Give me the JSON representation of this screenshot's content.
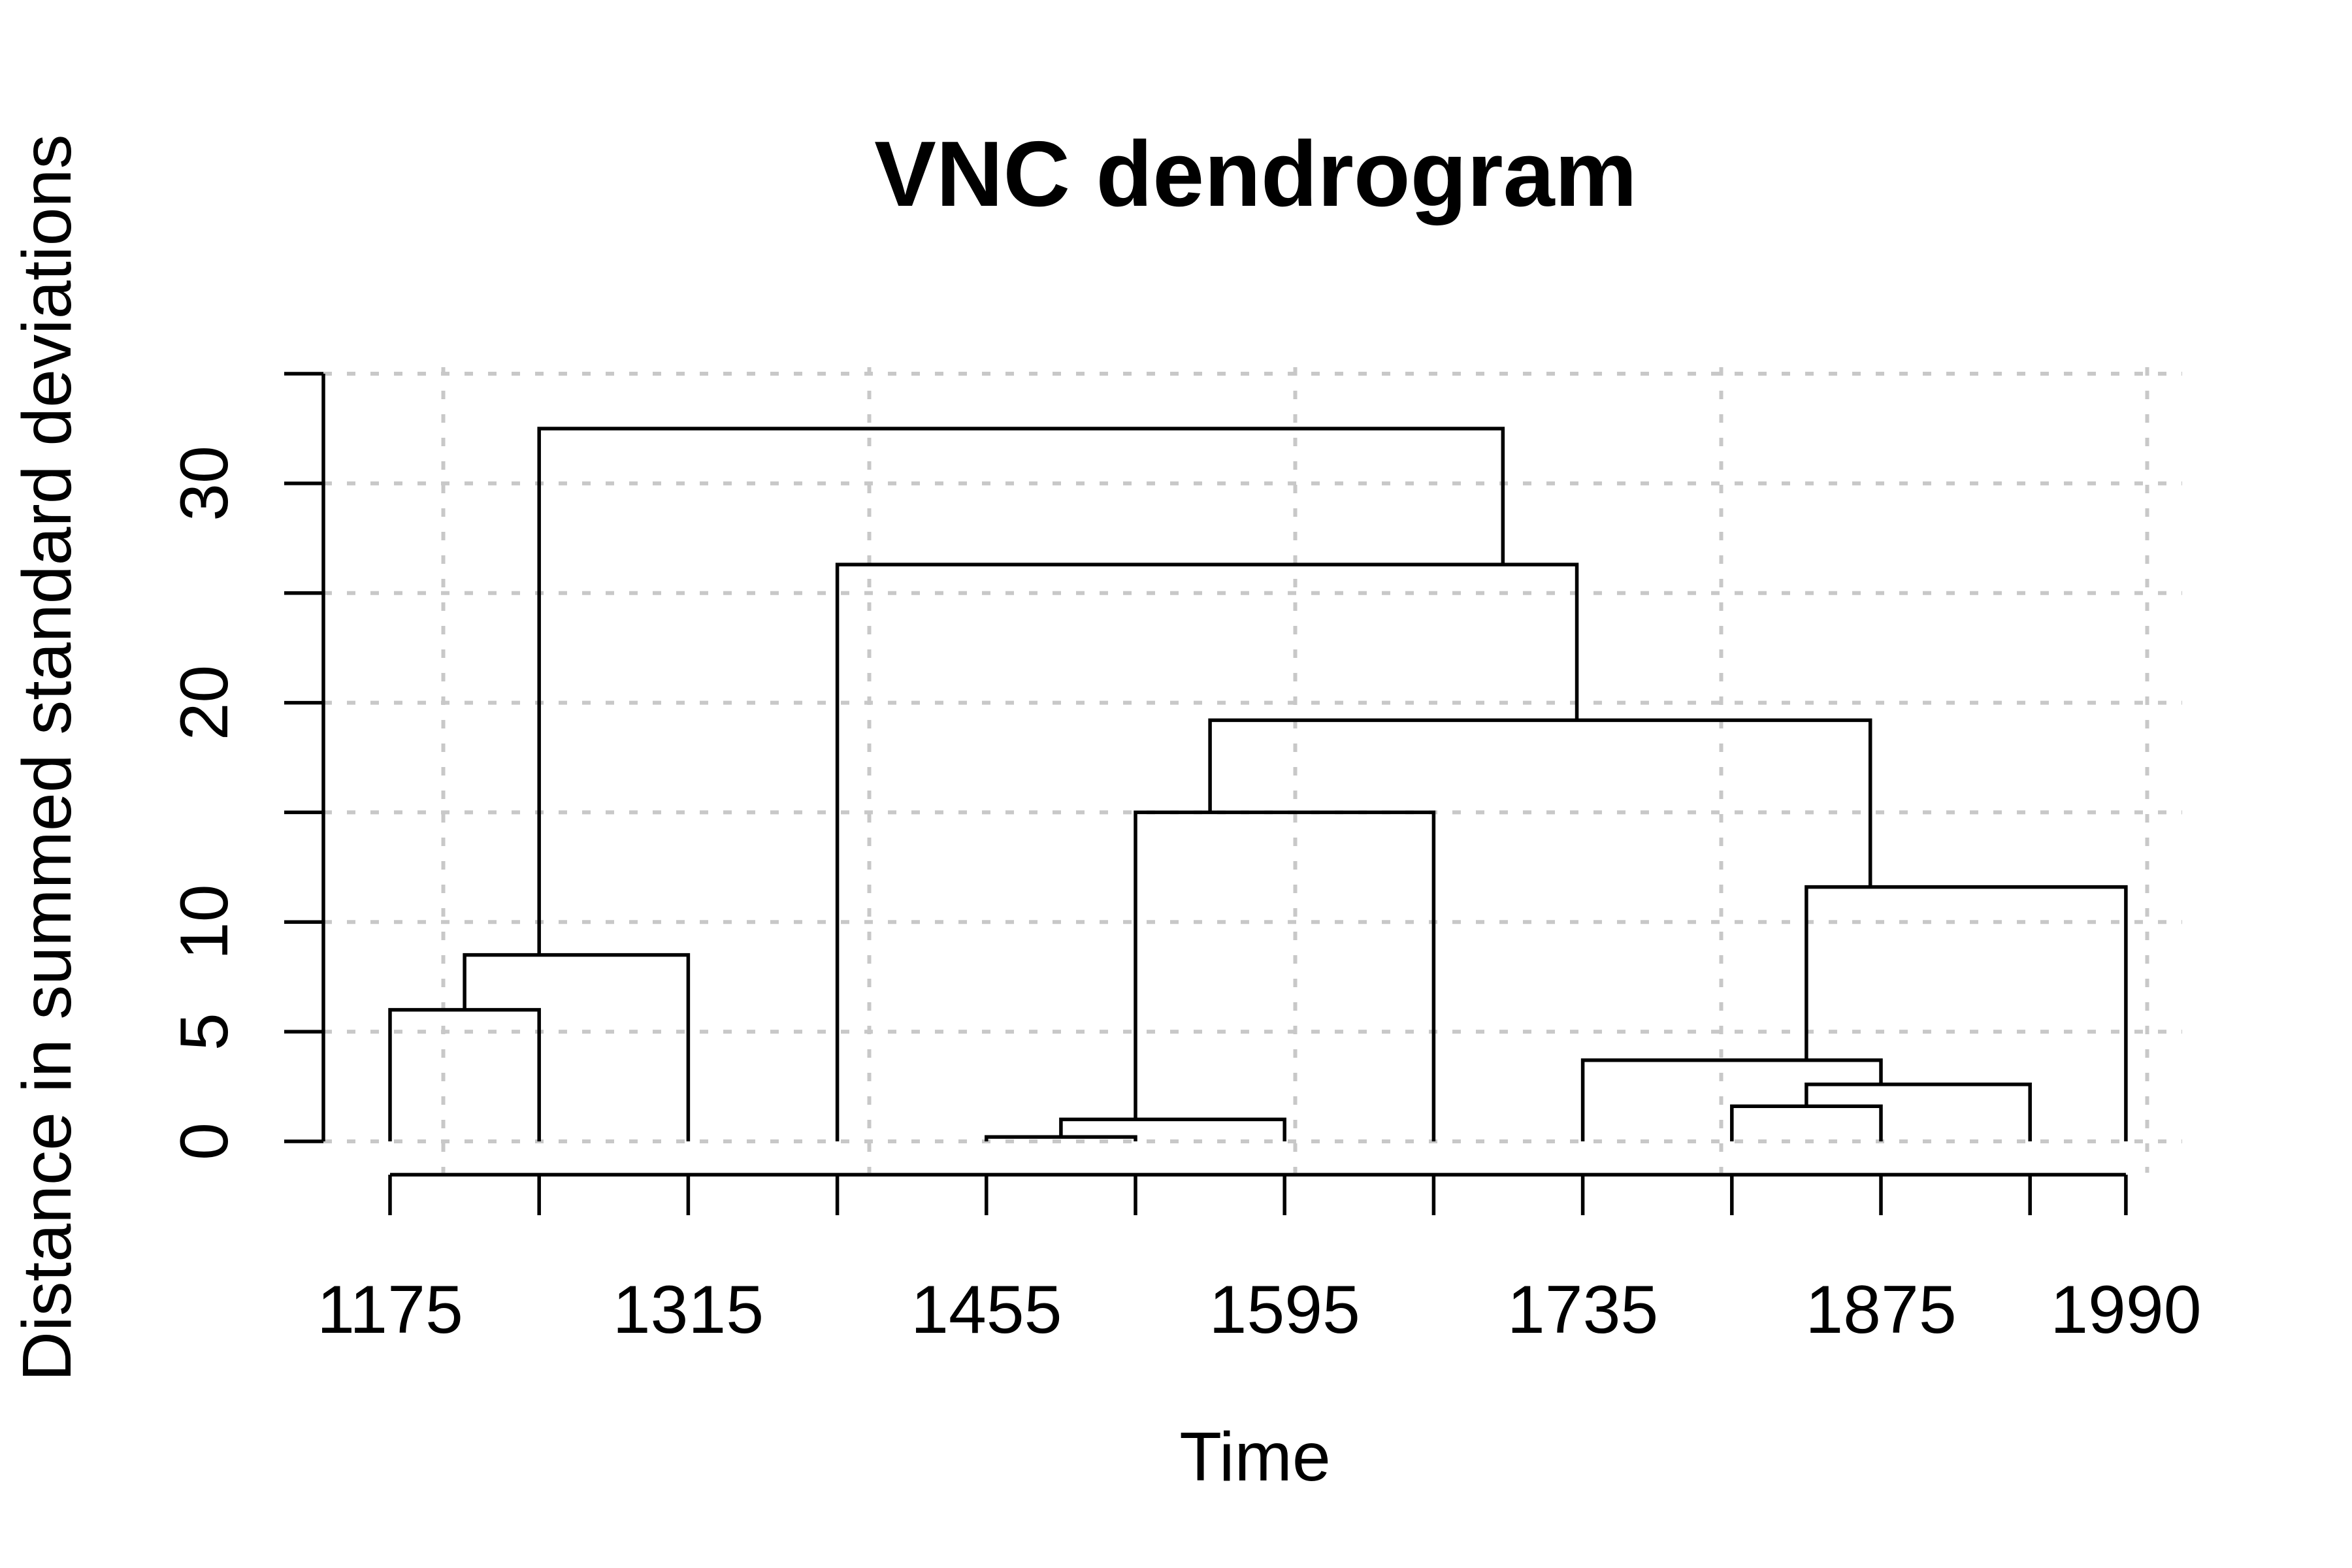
{
  "title": "VNC dendrogram",
  "axes": {
    "x": {
      "label": "Time",
      "ticks": [
        {
          "year": 1175,
          "label": "1175"
        },
        {
          "year": 1245,
          "label": ""
        },
        {
          "year": 1315,
          "label": "1315"
        },
        {
          "year": 1385,
          "label": ""
        },
        {
          "year": 1455,
          "label": "1455"
        },
        {
          "year": 1525,
          "label": ""
        },
        {
          "year": 1595,
          "label": "1595"
        },
        {
          "year": 1665,
          "label": ""
        },
        {
          "year": 1735,
          "label": "1735"
        },
        {
          "year": 1805,
          "label": ""
        },
        {
          "year": 1875,
          "label": "1875"
        },
        {
          "year": 1945,
          "label": ""
        },
        {
          "year": 1990,
          "label": "1990"
        }
      ]
    },
    "y": {
      "label": "Distance in summed standard deviations",
      "ticks": [
        {
          "value": 0,
          "label": "0"
        },
        {
          "value": 5,
          "label": "5"
        },
        {
          "value": 10,
          "label": "10"
        },
        {
          "value": 15,
          "label": ""
        },
        {
          "value": 20,
          "label": "20"
        },
        {
          "value": 25,
          "label": ""
        },
        {
          "value": 30,
          "label": "30"
        },
        {
          "value": 35,
          "label": ""
        }
      ]
    }
  },
  "chart_data": {
    "type": "dendrogram",
    "title": "VNC dendrogram",
    "xlabel": "Time",
    "ylabel": "Distance in summed standard deviations",
    "x_axis_years": [
      1175,
      1245,
      1315,
      1385,
      1455,
      1525,
      1595,
      1665,
      1735,
      1805,
      1875,
      1945,
      1990
    ],
    "x_gridline_years": [
      1200,
      1400,
      1600,
      1800,
      2000
    ],
    "y_gridline_values": [
      0,
      5,
      10,
      15,
      20,
      25,
      30,
      35
    ],
    "ylim": [
      0,
      35
    ],
    "grid_on": true,
    "leaves": [
      1175,
      1245,
      1315,
      1385,
      1455,
      1525,
      1595,
      1665,
      1735,
      1805,
      1875,
      1945,
      1990
    ],
    "merges": [
      {
        "id": "m1",
        "children": [
          "1455",
          "1525"
        ],
        "height": 0.2
      },
      {
        "id": "m2",
        "children": [
          "m1",
          "1595"
        ],
        "height": 1.0
      },
      {
        "id": "m3",
        "children": [
          "1805",
          "1875"
        ],
        "height": 1.6
      },
      {
        "id": "m4",
        "children": [
          "m3",
          "1945"
        ],
        "height": 2.6
      },
      {
        "id": "m5",
        "children": [
          "1735",
          "m4"
        ],
        "height": 3.7
      },
      {
        "id": "m6",
        "children": [
          "1175",
          "1245"
        ],
        "height": 6.0
      },
      {
        "id": "m7",
        "children": [
          "m6",
          "1315"
        ],
        "height": 8.5
      },
      {
        "id": "m8",
        "children": [
          "m5",
          "1990"
        ],
        "height": 11.6
      },
      {
        "id": "m9",
        "children": [
          "m2",
          "1665"
        ],
        "height": 15.0
      },
      {
        "id": "m10",
        "children": [
          "m9",
          "m8"
        ],
        "height": 19.2
      },
      {
        "id": "m11",
        "children": [
          "1385",
          "m10"
        ],
        "height": 26.3
      },
      {
        "id": "m12",
        "children": [
          "m7",
          "m11"
        ],
        "height": 32.5
      }
    ],
    "line_color": "#000000",
    "grid_color": "#c8c8c8",
    "background_color": "#ffffff"
  }
}
